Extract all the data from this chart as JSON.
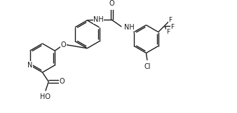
{
  "bg_color": "#ffffff",
  "line_color": "#1a1a1a",
  "line_width": 1.0,
  "font_size": 6.5,
  "figsize": [
    3.38,
    1.61
  ],
  "dpi": 100,
  "xlim": [
    0,
    10.5
  ],
  "ylim": [
    0,
    5.0
  ]
}
